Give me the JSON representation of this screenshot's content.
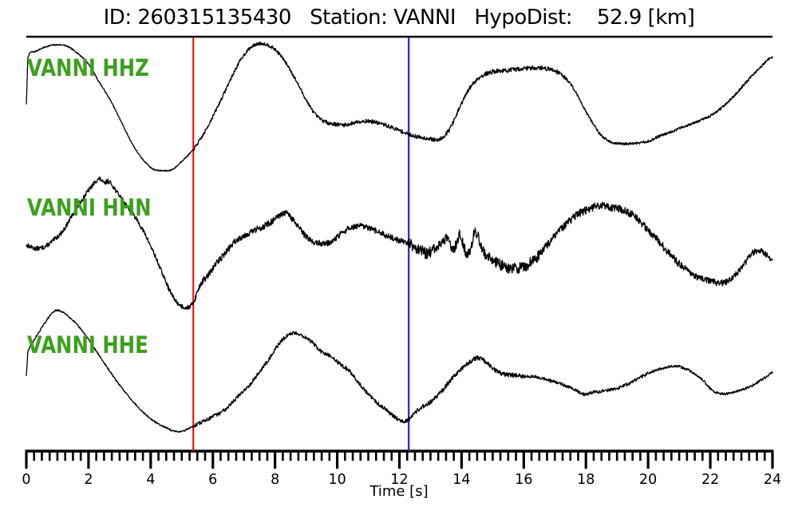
{
  "header": {
    "title": "ID: 260315135430   Station: VANNI   HypoDist:    52.9 [km]"
  },
  "axis": {
    "label": "Time [s]",
    "min": 0,
    "max": 24,
    "major_step": 2,
    "minor_step": 0.25,
    "tick_labels": [
      "0",
      "2",
      "4",
      "6",
      "8",
      "10",
      "12",
      "14",
      "16",
      "18",
      "20",
      "22",
      "24"
    ]
  },
  "colors": {
    "background": "#ffffff",
    "trace": "#000000",
    "axis": "#000000",
    "trace_label_green": "#3ca01e",
    "red_pick": "#ff0000",
    "blue_pick": "#3333cc"
  },
  "chart_data": {
    "type": "line",
    "title": "ID: 260315135430   Station: VANNI   HypoDist:    52.9 [km]",
    "xlabel": "Time [s]",
    "xlim": [
      0,
      24
    ],
    "grid": false,
    "legend": "inline-green-labels",
    "picks": [
      {
        "name": "red-pick-line",
        "time_s": 5.37,
        "color": "#ff0000"
      },
      {
        "name": "blue-pick-line",
        "time_s": 12.3,
        "color": "#3333cc"
      }
    ],
    "series": [
      {
        "name": "VANNI HHZ",
        "line_color": "#000000",
        "label_color": "#3ca01e",
        "points": [
          [
            0,
            0.09
          ],
          [
            0.05,
            0.81
          ],
          [
            0.3,
            0.91
          ],
          [
            0.7,
            0.99
          ],
          [
            1.0,
            1.01
          ],
          [
            1.3,
            0.99
          ],
          [
            1.7,
            0.86
          ],
          [
            2.0,
            0.71
          ],
          [
            2.3,
            0.46
          ],
          [
            2.7,
            0.15
          ],
          [
            3.0,
            -0.14
          ],
          [
            3.3,
            -0.44
          ],
          [
            3.6,
            -0.69
          ],
          [
            3.9,
            -0.86
          ],
          [
            4.1,
            -0.94
          ],
          [
            4.4,
            -0.96
          ],
          [
            4.7,
            -0.94
          ],
          [
            5.0,
            -0.81
          ],
          [
            5.37,
            -0.63
          ],
          [
            5.7,
            -0.39
          ],
          [
            6.0,
            -0.11
          ],
          [
            6.3,
            0.19
          ],
          [
            6.6,
            0.5
          ],
          [
            6.9,
            0.78
          ],
          [
            7.2,
            0.96
          ],
          [
            7.5,
            1.03
          ],
          [
            7.8,
            1.0
          ],
          [
            8.1,
            0.89
          ],
          [
            8.4,
            0.69
          ],
          [
            8.7,
            0.43
          ],
          [
            9.0,
            0.15
          ],
          [
            9.3,
            -0.08
          ],
          [
            9.6,
            -0.19
          ],
          [
            9.9,
            -0.23
          ],
          [
            10.3,
            -0.24
          ],
          [
            10.7,
            -0.19
          ],
          [
            11.1,
            -0.19
          ],
          [
            11.5,
            -0.24
          ],
          [
            11.9,
            -0.31
          ],
          [
            12.3,
            -0.39
          ],
          [
            12.7,
            -0.44
          ],
          [
            13.0,
            -0.46
          ],
          [
            13.2,
            -0.48
          ],
          [
            13.45,
            -0.41
          ],
          [
            13.7,
            -0.23
          ],
          [
            14.0,
            0.09
          ],
          [
            14.3,
            0.36
          ],
          [
            14.6,
            0.51
          ],
          [
            15.0,
            0.59
          ],
          [
            15.5,
            0.61
          ],
          [
            16.0,
            0.64
          ],
          [
            16.5,
            0.65
          ],
          [
            17.0,
            0.61
          ],
          [
            17.3,
            0.51
          ],
          [
            17.6,
            0.33
          ],
          [
            17.9,
            0.06
          ],
          [
            18.2,
            -0.2
          ],
          [
            18.5,
            -0.41
          ],
          [
            18.8,
            -0.51
          ],
          [
            19.2,
            -0.54
          ],
          [
            19.6,
            -0.53
          ],
          [
            20.0,
            -0.5
          ],
          [
            20.4,
            -0.41
          ],
          [
            20.8,
            -0.34
          ],
          [
            21.2,
            -0.26
          ],
          [
            21.6,
            -0.19
          ],
          [
            22.0,
            -0.1
          ],
          [
            22.4,
            0.04
          ],
          [
            22.8,
            0.23
          ],
          [
            23.2,
            0.45
          ],
          [
            23.6,
            0.65
          ],
          [
            23.9,
            0.79
          ],
          [
            24,
            0.81
          ]
        ],
        "noise": [
          [
            0,
            5.37,
            0.01
          ],
          [
            5.37,
            9.5,
            0.025
          ],
          [
            9.5,
            13.5,
            0.03
          ],
          [
            13.5,
            17.5,
            0.035
          ],
          [
            17.5,
            24,
            0.02
          ]
        ]
      },
      {
        "name": "VANNI HHN",
        "line_color": "#000000",
        "label_color": "#3ca01e",
        "points": [
          [
            0,
            -0.09
          ],
          [
            0.3,
            -0.14
          ],
          [
            0.6,
            -0.11
          ],
          [
            0.9,
            0.0
          ],
          [
            1.2,
            0.15
          ],
          [
            1.5,
            0.4
          ],
          [
            1.8,
            0.63
          ],
          [
            2.1,
            0.83
          ],
          [
            2.35,
            0.95
          ],
          [
            2.5,
            0.88
          ],
          [
            2.65,
            0.91
          ],
          [
            2.9,
            0.75
          ],
          [
            3.2,
            0.55
          ],
          [
            3.5,
            0.35
          ],
          [
            3.8,
            0.1
          ],
          [
            4.1,
            -0.21
          ],
          [
            4.4,
            -0.56
          ],
          [
            4.7,
            -0.88
          ],
          [
            4.95,
            -1.03
          ],
          [
            5.2,
            -1.06
          ],
          [
            5.37,
            -0.98
          ],
          [
            5.6,
            -0.7
          ],
          [
            5.85,
            -0.56
          ],
          [
            6.1,
            -0.38
          ],
          [
            6.4,
            -0.21
          ],
          [
            6.7,
            -0.04
          ],
          [
            6.95,
            0.05
          ],
          [
            7.2,
            0.11
          ],
          [
            7.5,
            0.18
          ],
          [
            7.8,
            0.25
          ],
          [
            8.1,
            0.35
          ],
          [
            8.35,
            0.41
          ],
          [
            8.6,
            0.29
          ],
          [
            8.9,
            0.1
          ],
          [
            9.2,
            -0.03
          ],
          [
            9.5,
            -0.06
          ],
          [
            9.8,
            -0.04
          ],
          [
            10.1,
            0.08
          ],
          [
            10.4,
            0.18
          ],
          [
            10.75,
            0.21
          ],
          [
            11.1,
            0.16
          ],
          [
            11.5,
            0.08
          ],
          [
            11.9,
            0.0
          ],
          [
            12.3,
            -0.06
          ],
          [
            12.6,
            -0.15
          ],
          [
            12.9,
            -0.21
          ],
          [
            13.2,
            -0.13
          ],
          [
            13.5,
            0.0
          ],
          [
            13.75,
            -0.13
          ],
          [
            13.95,
            0.06
          ],
          [
            14.2,
            -0.23
          ],
          [
            14.45,
            0.11
          ],
          [
            14.7,
            -0.19
          ],
          [
            15.0,
            -0.31
          ],
          [
            15.3,
            -0.41
          ],
          [
            15.7,
            -0.45
          ],
          [
            16.1,
            -0.4
          ],
          [
            16.5,
            -0.23
          ],
          [
            16.9,
            0.0
          ],
          [
            17.3,
            0.21
          ],
          [
            17.7,
            0.38
          ],
          [
            18.0,
            0.46
          ],
          [
            18.4,
            0.53
          ],
          [
            18.8,
            0.5
          ],
          [
            19.2,
            0.46
          ],
          [
            19.6,
            0.35
          ],
          [
            20.0,
            0.15
          ],
          [
            20.4,
            -0.06
          ],
          [
            20.8,
            -0.28
          ],
          [
            21.2,
            -0.46
          ],
          [
            21.6,
            -0.59
          ],
          [
            22.0,
            -0.65
          ],
          [
            22.4,
            -0.68
          ],
          [
            22.8,
            -0.56
          ],
          [
            23.1,
            -0.38
          ],
          [
            23.4,
            -0.2
          ],
          [
            23.65,
            -0.19
          ],
          [
            23.85,
            -0.25
          ],
          [
            24,
            -0.35
          ]
        ],
        "noise": [
          [
            0,
            5.37,
            0.035
          ],
          [
            5.37,
            9.0,
            0.05
          ],
          [
            9.0,
            12.3,
            0.045
          ],
          [
            12.3,
            16.5,
            0.09
          ],
          [
            16.5,
            21,
            0.06
          ],
          [
            21,
            24,
            0.05
          ]
        ]
      },
      {
        "name": "VANNI HHE",
        "line_color": "#000000",
        "label_color": "#3ca01e",
        "points": [
          [
            0,
            -0.06
          ],
          [
            0.05,
            0.31
          ],
          [
            0.3,
            0.53
          ],
          [
            0.6,
            0.76
          ],
          [
            0.9,
            0.94
          ],
          [
            1.15,
            0.93
          ],
          [
            1.4,
            0.84
          ],
          [
            1.7,
            0.69
          ],
          [
            2.0,
            0.5
          ],
          [
            2.3,
            0.28
          ],
          [
            2.6,
            0.06
          ],
          [
            2.9,
            -0.15
          ],
          [
            3.2,
            -0.34
          ],
          [
            3.5,
            -0.51
          ],
          [
            3.8,
            -0.66
          ],
          [
            4.1,
            -0.78
          ],
          [
            4.4,
            -0.86
          ],
          [
            4.7,
            -0.93
          ],
          [
            5.0,
            -0.94
          ],
          [
            5.37,
            -0.86
          ],
          [
            5.7,
            -0.78
          ],
          [
            6.0,
            -0.71
          ],
          [
            6.3,
            -0.63
          ],
          [
            6.6,
            -0.5
          ],
          [
            6.9,
            -0.35
          ],
          [
            7.2,
            -0.2
          ],
          [
            7.5,
            -0.01
          ],
          [
            7.8,
            0.19
          ],
          [
            8.1,
            0.41
          ],
          [
            8.4,
            0.56
          ],
          [
            8.65,
            0.6
          ],
          [
            8.9,
            0.55
          ],
          [
            9.2,
            0.45
          ],
          [
            9.5,
            0.3
          ],
          [
            9.8,
            0.23
          ],
          [
            10.1,
            0.11
          ],
          [
            10.4,
            0.0
          ],
          [
            10.7,
            -0.19
          ],
          [
            11.0,
            -0.36
          ],
          [
            11.3,
            -0.5
          ],
          [
            11.6,
            -0.61
          ],
          [
            11.9,
            -0.73
          ],
          [
            12.15,
            -0.78
          ],
          [
            12.3,
            -0.75
          ],
          [
            12.5,
            -0.64
          ],
          [
            12.8,
            -0.54
          ],
          [
            13.1,
            -0.44
          ],
          [
            13.4,
            -0.29
          ],
          [
            13.7,
            -0.11
          ],
          [
            14.0,
            0.04
          ],
          [
            14.3,
            0.16
          ],
          [
            14.55,
            0.21
          ],
          [
            14.8,
            0.13
          ],
          [
            15.1,
            0.01
          ],
          [
            15.4,
            -0.05
          ],
          [
            15.7,
            -0.06
          ],
          [
            16.0,
            -0.08
          ],
          [
            16.4,
            -0.09
          ],
          [
            16.8,
            -0.14
          ],
          [
            17.2,
            -0.2
          ],
          [
            17.6,
            -0.28
          ],
          [
            17.95,
            -0.36
          ],
          [
            18.1,
            -0.34
          ],
          [
            18.5,
            -0.31
          ],
          [
            18.9,
            -0.28
          ],
          [
            19.3,
            -0.21
          ],
          [
            19.7,
            -0.11
          ],
          [
            20.1,
            -0.01
          ],
          [
            20.5,
            0.05
          ],
          [
            20.9,
            0.08
          ],
          [
            21.2,
            0.04
          ],
          [
            21.5,
            -0.04
          ],
          [
            21.8,
            -0.16
          ],
          [
            22.1,
            -0.31
          ],
          [
            22.4,
            -0.35
          ],
          [
            22.7,
            -0.34
          ],
          [
            23.0,
            -0.29
          ],
          [
            23.3,
            -0.24
          ],
          [
            23.6,
            -0.15
          ],
          [
            23.8,
            -0.09
          ],
          [
            24,
            -0.01
          ]
        ],
        "noise": [
          [
            0,
            5.37,
            0.012
          ],
          [
            5.37,
            12.3,
            0.03
          ],
          [
            12.3,
            16,
            0.035
          ],
          [
            16,
            20,
            0.025
          ],
          [
            20,
            24,
            0.02
          ]
        ]
      }
    ]
  }
}
